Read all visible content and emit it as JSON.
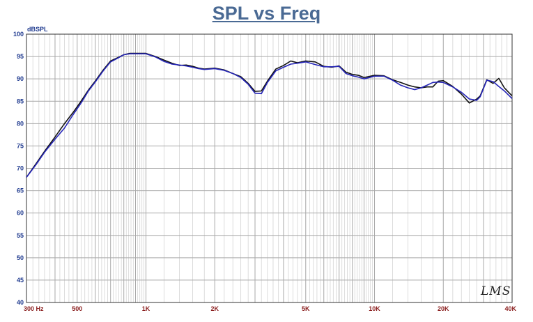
{
  "chart_data": {
    "type": "line",
    "title": "SPL vs Freq",
    "ylabel": "dBSPL",
    "xlabel": "",
    "x_scale": "log",
    "xlim": [
      300,
      40000
    ],
    "ylim": [
      40,
      100
    ],
    "grid": true,
    "y_ticks": [
      40,
      45,
      50,
      55,
      60,
      65,
      70,
      75,
      80,
      85,
      90,
      95,
      100
    ],
    "x_tick_labels": [
      {
        "value": 300,
        "label": "300  Hz"
      },
      {
        "value": 500,
        "label": "500"
      },
      {
        "value": 1000,
        "label": "1K"
      },
      {
        "value": 2000,
        "label": "2K"
      },
      {
        "value": 5000,
        "label": "5K"
      },
      {
        "value": 10000,
        "label": "10K"
      },
      {
        "value": 20000,
        "label": "20K"
      },
      {
        "value": 40000,
        "label": "40K"
      }
    ],
    "series": [
      {
        "color": "#111111",
        "x": [
          300,
          330,
          360,
          400,
          440,
          480,
          520,
          560,
          600,
          650,
          700,
          750,
          800,
          850,
          900,
          1000,
          1100,
          1200,
          1300,
          1400,
          1500,
          1600,
          1700,
          1800,
          2000,
          2200,
          2400,
          2600,
          2800,
          3000,
          3200,
          3400,
          3700,
          4000,
          4300,
          4600,
          5000,
          5500,
          6000,
          6500,
          7000,
          7500,
          8000,
          8500,
          9000,
          10000,
          11000,
          12000,
          13000,
          14000,
          15000,
          16000,
          17000,
          18000,
          19000,
          20000,
          22000,
          24000,
          26000,
          28000,
          29000,
          31000,
          33000,
          35000,
          37000,
          40000
        ],
        "values": [
          68.0,
          71.0,
          73.8,
          77.0,
          80.0,
          82.5,
          85.0,
          87.5,
          89.5,
          92.0,
          94.0,
          94.7,
          95.4,
          95.7,
          95.7,
          95.7,
          95.0,
          94.2,
          93.5,
          93.0,
          93.1,
          92.8,
          92.4,
          92.2,
          92.4,
          92.0,
          91.2,
          90.5,
          89.0,
          87.2,
          87.3,
          89.5,
          92.2,
          93.0,
          94.0,
          93.6,
          94.0,
          93.8,
          92.8,
          92.6,
          92.9,
          91.5,
          91.0,
          90.8,
          90.3,
          90.8,
          90.7,
          89.8,
          89.2,
          88.6,
          88.2,
          88.0,
          88.2,
          88.2,
          89.5,
          89.6,
          88.3,
          86.6,
          84.6,
          85.5,
          86.2,
          89.8,
          89.0,
          90.1,
          88.0,
          86.2
        ]
      },
      {
        "color": "#2525b8",
        "x": [
          300,
          330,
          360,
          400,
          440,
          480,
          520,
          560,
          600,
          650,
          700,
          750,
          800,
          850,
          900,
          1000,
          1100,
          1200,
          1300,
          1400,
          1500,
          1600,
          1700,
          1800,
          2000,
          2200,
          2400,
          2600,
          2800,
          3000,
          3200,
          3400,
          3700,
          4000,
          4300,
          4600,
          5000,
          5500,
          6000,
          6500,
          7000,
          7500,
          8000,
          8500,
          9000,
          10000,
          11000,
          12000,
          13000,
          14000,
          15000,
          16000,
          17000,
          18000,
          19000,
          20000,
          22000,
          24000,
          26000,
          28000,
          29000,
          31000,
          33000,
          35000,
          37000,
          40000
        ],
        "values": [
          68.0,
          70.8,
          73.6,
          76.5,
          79.0,
          82.0,
          84.6,
          87.3,
          89.3,
          91.8,
          93.8,
          94.6,
          95.4,
          95.6,
          95.6,
          95.6,
          94.9,
          93.9,
          93.3,
          93.1,
          92.9,
          92.6,
          92.3,
          92.1,
          92.3,
          91.9,
          91.2,
          90.3,
          88.8,
          86.8,
          86.7,
          89.2,
          91.8,
          92.6,
          93.3,
          93.5,
          93.8,
          93.2,
          92.7,
          92.7,
          92.8,
          91.2,
          90.7,
          90.4,
          90.0,
          90.6,
          90.6,
          89.7,
          88.6,
          88.0,
          87.6,
          88.0,
          88.6,
          89.2,
          89.3,
          89.2,
          88.2,
          87.0,
          85.5,
          85.2,
          86.0,
          89.7,
          89.4,
          88.3,
          87.3,
          85.6
        ]
      }
    ]
  },
  "watermark": "LMS"
}
